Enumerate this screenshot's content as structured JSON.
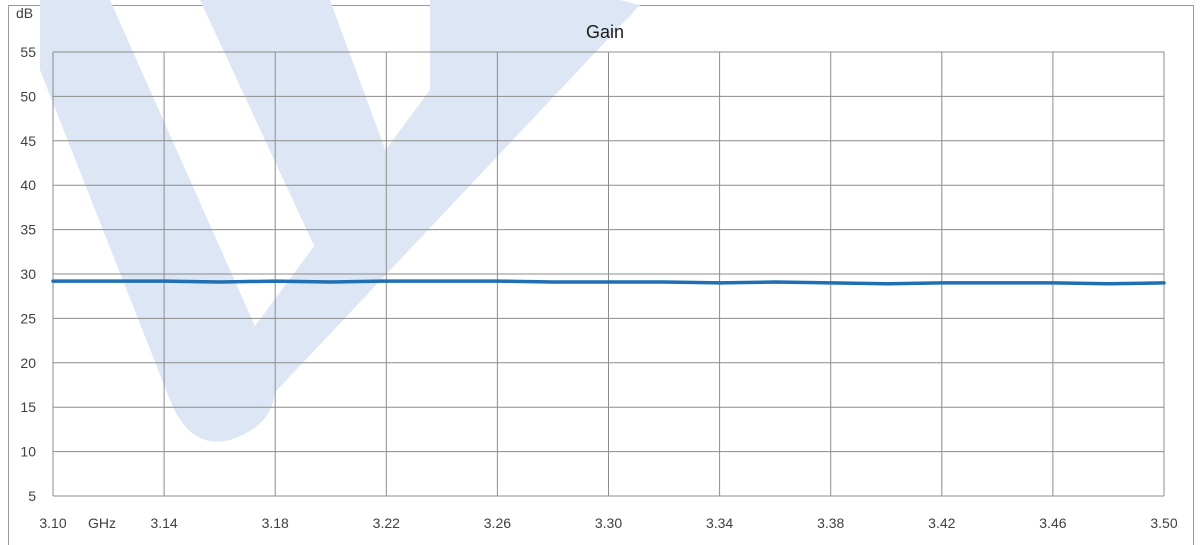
{
  "colors": {
    "series": "#1f6fb2",
    "grid": "#8c8c8c",
    "watermark": "#dce6f4"
  },
  "chart_data": {
    "type": "line",
    "title": "Gain",
    "ylabel": "dB",
    "xlabel": "GHz",
    "xlim": [
      3.1,
      3.5
    ],
    "ylim": [
      5,
      55
    ],
    "x_ticks": [
      "3.10",
      "3.14",
      "3.18",
      "3.22",
      "3.26",
      "3.30",
      "3.34",
      "3.38",
      "3.42",
      "3.46",
      "3.50"
    ],
    "y_ticks": [
      "5",
      "10",
      "15",
      "20",
      "25",
      "30",
      "35",
      "40",
      "45",
      "50",
      "55"
    ],
    "grid": true,
    "legend": "none",
    "series": [
      {
        "x": [
          3.1,
          3.12,
          3.14,
          3.16,
          3.18,
          3.2,
          3.22,
          3.24,
          3.26,
          3.28,
          3.3,
          3.32,
          3.34,
          3.36,
          3.38,
          3.4,
          3.42,
          3.44,
          3.46,
          3.48,
          3.5
        ],
        "y": [
          29.2,
          29.2,
          29.2,
          29.1,
          29.2,
          29.1,
          29.2,
          29.2,
          29.2,
          29.1,
          29.1,
          29.1,
          29.0,
          29.1,
          29.0,
          28.9,
          29.0,
          29.0,
          29.0,
          28.9,
          29.0
        ]
      }
    ]
  }
}
